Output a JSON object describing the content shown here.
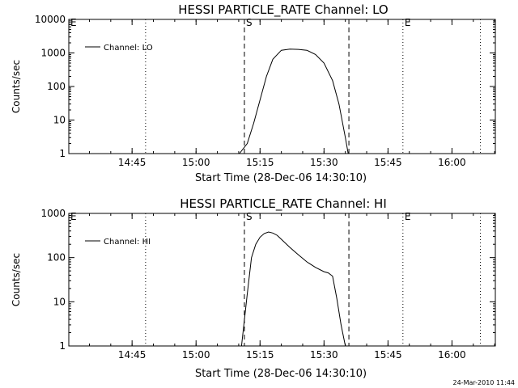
{
  "chart_data": [
    {
      "type": "line",
      "title": "HESSI PARTICLE_RATE Channel: LO",
      "xlabel": "Start Time (28-Dec-06 14:30:10)",
      "ylabel": "Counts/sec",
      "yscale": "log",
      "ylim": [
        1,
        10000
      ],
      "xlim": [
        "14:30:10",
        "16:10:10"
      ],
      "x_ticks": [
        "14:45",
        "15:00",
        "15:15",
        "15:30",
        "15:45",
        "16:00"
      ],
      "y_ticks": [
        "1",
        "10",
        "100",
        "1000",
        "10000"
      ],
      "legend": {
        "placement": "top-left",
        "entries": [
          "Channel: LO"
        ]
      },
      "markers": [
        {
          "label": "E",
          "time": "14:30:10",
          "style": "dotted"
        },
        {
          "label": "",
          "time": "14:48:10",
          "style": "dotted"
        },
        {
          "label": "S",
          "time": "15:11:20",
          "style": "dashed"
        },
        {
          "label": "",
          "time": "15:35:50",
          "style": "dashed"
        },
        {
          "label": "E",
          "time": "15:48:30",
          "style": "dotted"
        },
        {
          "label": "",
          "time": "16:06:40",
          "style": "dotted"
        }
      ],
      "series": [
        {
          "name": "Channel: LO",
          "x": [
            "15:10:10",
            "15:12:00",
            "15:13:30",
            "15:15:00",
            "15:16:30",
            "15:18:00",
            "15:20:00",
            "15:22:00",
            "15:24:00",
            "15:26:00",
            "15:28:00",
            "15:30:00",
            "15:32:00",
            "15:33:30",
            "15:35:00",
            "15:35:40"
          ],
          "y": [
            1,
            2,
            8,
            40,
            200,
            650,
            1200,
            1300,
            1280,
            1200,
            900,
            500,
            150,
            30,
            3,
            1
          ]
        }
      ]
    },
    {
      "type": "line",
      "title": "HESSI PARTICLE_RATE Channel: HI",
      "xlabel": "Start Time (28-Dec-06 14:30:10)",
      "ylabel": "Counts/sec",
      "yscale": "log",
      "ylim": [
        1,
        1000
      ],
      "xlim": [
        "14:30:10",
        "16:10:10"
      ],
      "x_ticks": [
        "14:45",
        "15:00",
        "15:15",
        "15:30",
        "15:45",
        "16:00"
      ],
      "y_ticks": [
        "1",
        "10",
        "100",
        "1000"
      ],
      "legend": {
        "placement": "top-left",
        "entries": [
          "Channel: HI"
        ]
      },
      "markers": [
        {
          "label": "E",
          "time": "14:30:10",
          "style": "dotted"
        },
        {
          "label": "",
          "time": "14:48:10",
          "style": "dotted"
        },
        {
          "label": "S",
          "time": "15:11:20",
          "style": "dashed"
        },
        {
          "label": "",
          "time": "15:35:50",
          "style": "dashed"
        },
        {
          "label": "E",
          "time": "15:48:30",
          "style": "dotted"
        },
        {
          "label": "",
          "time": "16:06:40",
          "style": "dotted"
        }
      ],
      "series": [
        {
          "name": "Channel: HI",
          "x": [
            "15:10:40",
            "15:12:00",
            "15:13:00",
            "15:14:00",
            "15:15:00",
            "15:16:00",
            "15:17:00",
            "15:18:00",
            "15:19:00",
            "15:20:00",
            "15:22:00",
            "15:24:00",
            "15:26:00",
            "15:28:00",
            "15:30:00",
            "15:31:00",
            "15:32:00",
            "15:33:00",
            "15:34:00",
            "15:35:00"
          ],
          "y": [
            1,
            15,
            100,
            200,
            290,
            350,
            380,
            360,
            320,
            260,
            170,
            115,
            80,
            60,
            48,
            45,
            38,
            12,
            3,
            1
          ]
        }
      ]
    }
  ],
  "footer": {
    "timestamp": "24-Mar-2010 11:44"
  }
}
